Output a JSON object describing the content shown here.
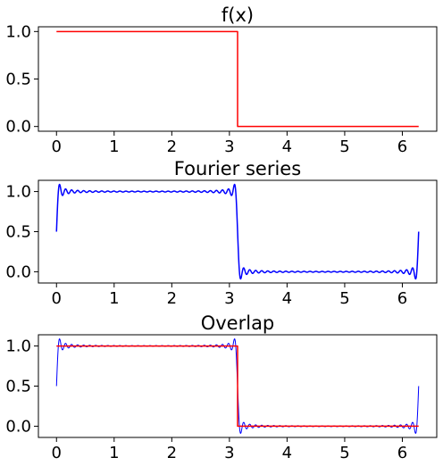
{
  "chart_data": [
    {
      "type": "line",
      "title": "f(x)",
      "xlim": [
        -0.314,
        6.597
      ],
      "ylim": [
        -0.05,
        1.05
      ],
      "xticks": [
        "0",
        "1",
        "2",
        "3",
        "4",
        "5",
        "6"
      ],
      "yticks": [
        "0.0",
        "0.5",
        "1.0"
      ],
      "grid": false,
      "series": [
        {
          "kind": "step",
          "x": [
            0,
            3.1416,
            3.1416,
            6.2832
          ],
          "y": [
            1,
            1,
            0,
            0
          ],
          "color": "#ff0000"
        }
      ]
    },
    {
      "type": "line",
      "title": "Fourier series",
      "xlim": [
        -0.314,
        6.597
      ],
      "ylim": [
        -0.14,
        1.14
      ],
      "xticks": [
        "0",
        "1",
        "2",
        "3",
        "4",
        "5",
        "6"
      ],
      "yticks": [
        "0.0",
        "0.5",
        "1.0"
      ],
      "grid": false,
      "series": [
        {
          "kind": "fourier_square_wave",
          "x_range": [
            0,
            6.2832
          ],
          "period": 6.2832,
          "terms": 59,
          "color": "#0000ff"
        }
      ]
    },
    {
      "type": "line",
      "title": "Overlap",
      "xlim": [
        -0.314,
        6.597
      ],
      "ylim": [
        -0.14,
        1.14
      ],
      "xticks": [
        "0",
        "1",
        "2",
        "3",
        "4",
        "5",
        "6"
      ],
      "yticks": [
        "0.0",
        "0.5",
        "1.0"
      ],
      "grid": false,
      "series": [
        {
          "kind": "fourier_square_wave",
          "x_range": [
            0,
            6.2832
          ],
          "period": 6.2832,
          "terms": 59,
          "color": "#0000ff"
        },
        {
          "kind": "step",
          "x": [
            0,
            3.1416,
            3.1416,
            6.2832
          ],
          "y": [
            1,
            1,
            0,
            0
          ],
          "color": "#ff0000"
        }
      ]
    }
  ]
}
